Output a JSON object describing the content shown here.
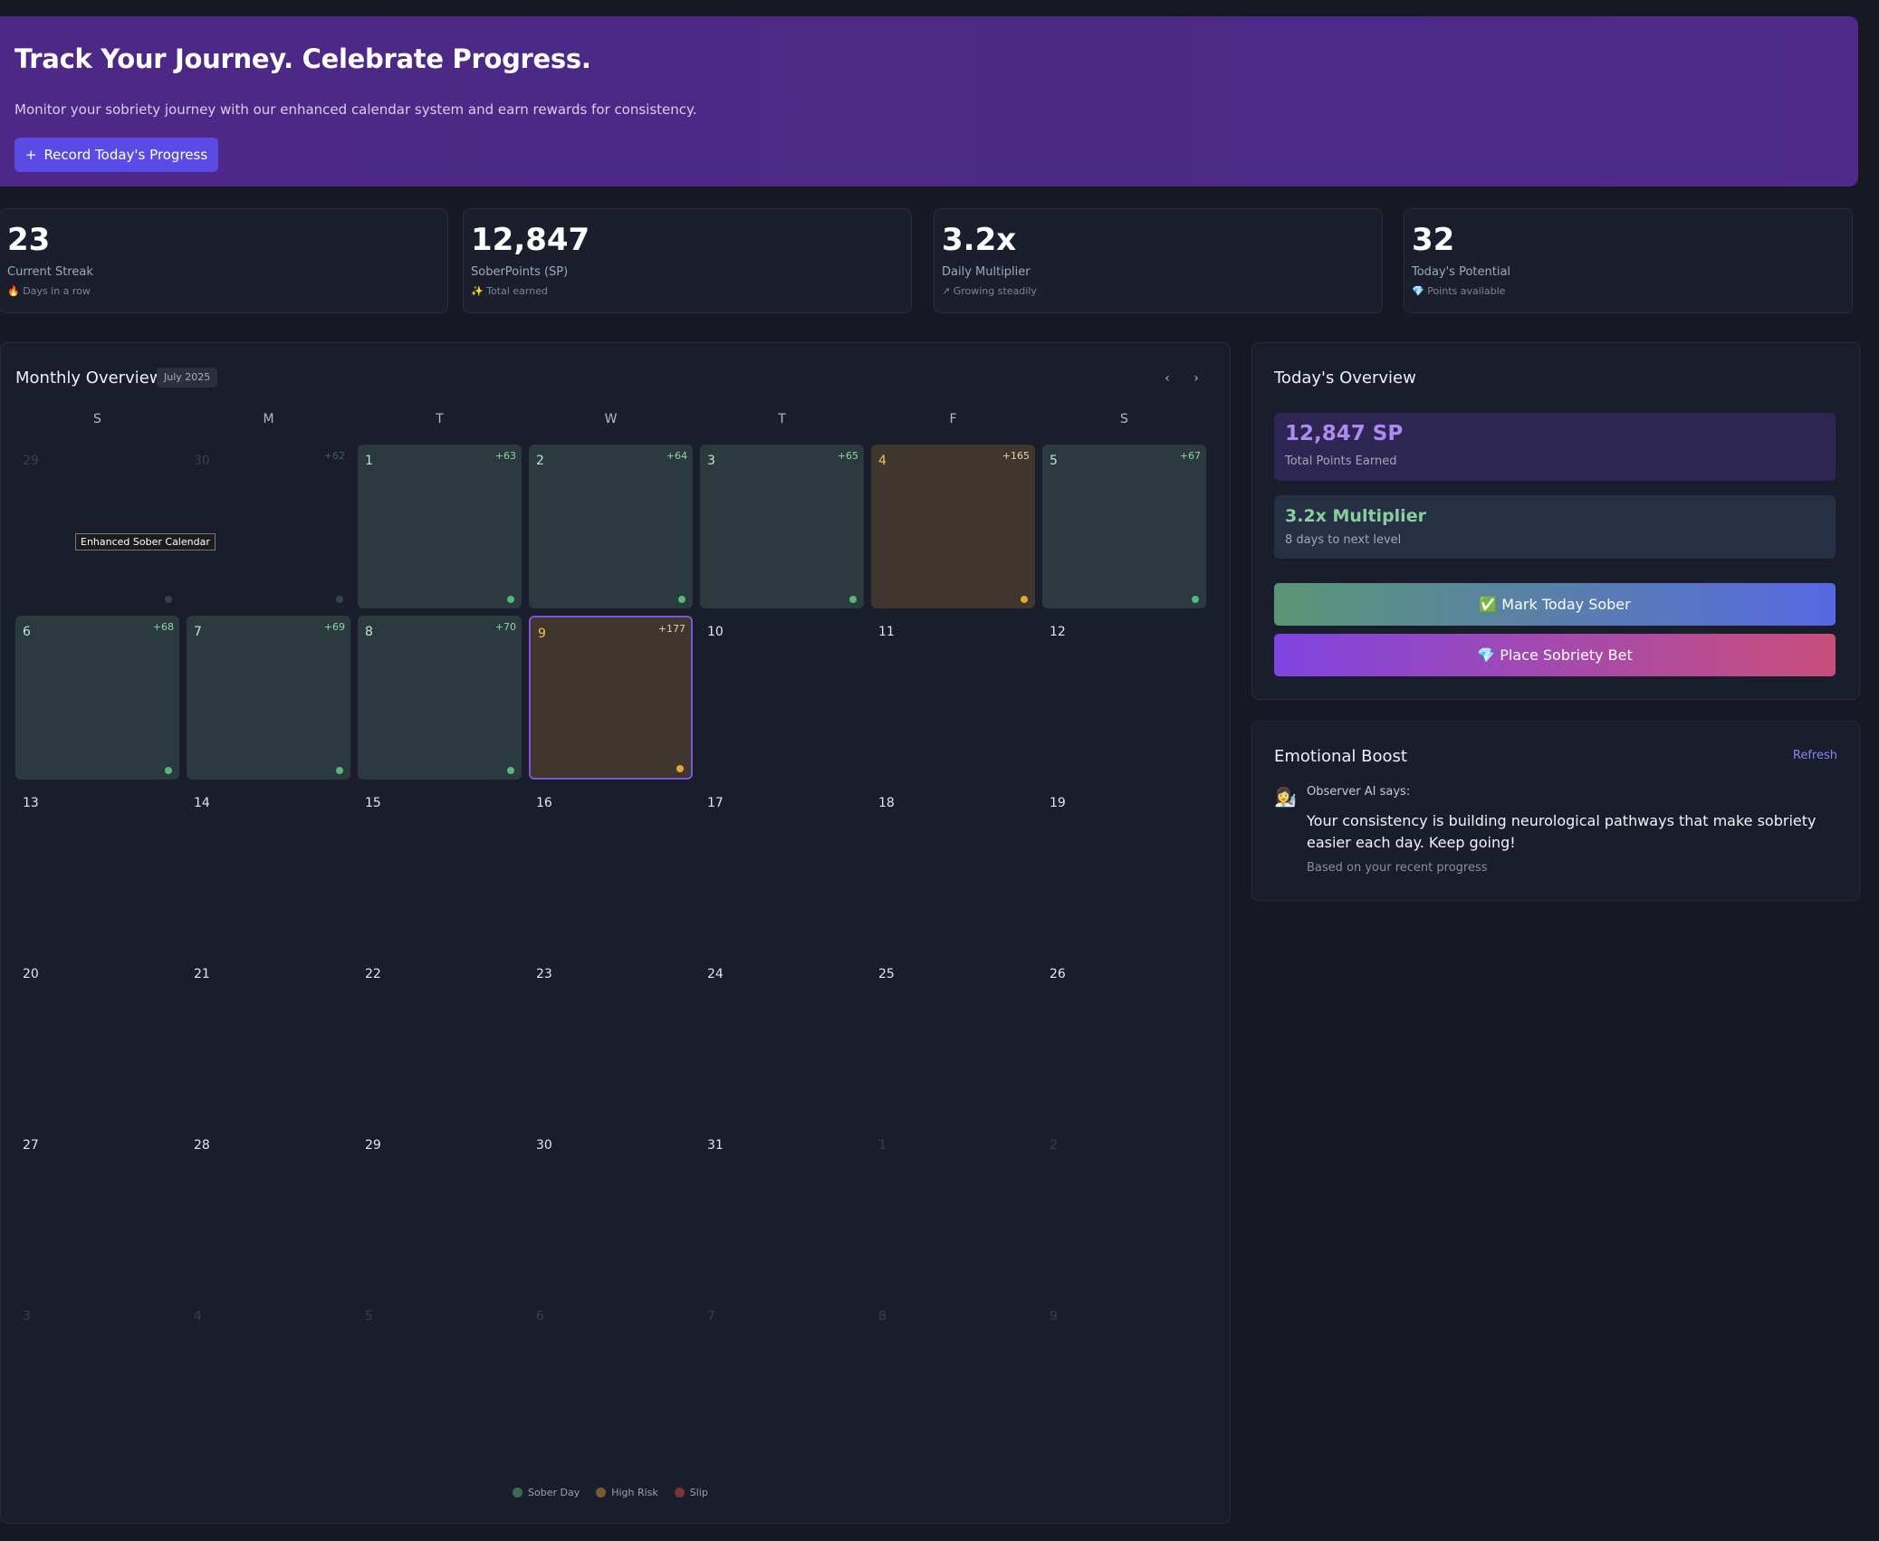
{
  "hero": {
    "title": "Track Your Journey. Celebrate Progress.",
    "subtitle": "Monitor your sobriety journey with our enhanced calendar system and earn rewards for consistency.",
    "button_icon": "+",
    "button_label": "Record Today's Progress"
  },
  "stats": [
    {
      "value": "23",
      "label": "Current Streak",
      "icon": "🔥",
      "sub": "Days in a row"
    },
    {
      "value": "12,847",
      "label": "SoberPoints (SP)",
      "icon": "✨",
      "sub": "Total earned"
    },
    {
      "value": "3.2x",
      "label": "Daily Multiplier",
      "icon": "↗",
      "sub": "Growing steadily"
    },
    {
      "value": "32",
      "label": "Today's Potential",
      "icon": "💎",
      "sub": "Points available"
    }
  ],
  "calendar": {
    "title": "Monthly Overview",
    "month": "July 2025",
    "prev_icon": "‹",
    "next_icon": "›",
    "weekdays": [
      "S",
      "M",
      "T",
      "W",
      "T",
      "F",
      "S"
    ],
    "tooltip": "Enhanced Sober Calendar",
    "days": [
      {
        "d": "29",
        "type": "muted",
        "pts": ""
      },
      {
        "d": "30",
        "type": "muted",
        "pts": "+62",
        "dot": "dim"
      },
      {
        "d": "1",
        "type": "sober",
        "pts": "+63",
        "dot": "g"
      },
      {
        "d": "2",
        "type": "sober",
        "pts": "+64",
        "dot": "g"
      },
      {
        "d": "3",
        "type": "sober",
        "pts": "+65",
        "dot": "g"
      },
      {
        "d": "4",
        "type": "risk",
        "pts": "+165",
        "dot": "o"
      },
      {
        "d": "5",
        "type": "sober",
        "pts": "+67",
        "dot": "g"
      },
      {
        "d": "6",
        "type": "sober",
        "pts": "+68",
        "dot": "g"
      },
      {
        "d": "7",
        "type": "sober",
        "pts": "+69",
        "dot": "g"
      },
      {
        "d": "8",
        "type": "sober",
        "pts": "+70",
        "dot": "g"
      },
      {
        "d": "9",
        "type": "risk today",
        "pts": "+177",
        "dot": "o"
      },
      {
        "d": "10",
        "type": "",
        "pts": ""
      },
      {
        "d": "11",
        "type": "",
        "pts": ""
      },
      {
        "d": "12",
        "type": "",
        "pts": ""
      },
      {
        "d": "13",
        "type": "",
        "pts": ""
      },
      {
        "d": "14",
        "type": "",
        "pts": ""
      },
      {
        "d": "15",
        "type": "",
        "pts": ""
      },
      {
        "d": "16",
        "type": "",
        "pts": ""
      },
      {
        "d": "17",
        "type": "",
        "pts": ""
      },
      {
        "d": "18",
        "type": "",
        "pts": ""
      },
      {
        "d": "19",
        "type": "",
        "pts": ""
      },
      {
        "d": "20",
        "type": "",
        "pts": ""
      },
      {
        "d": "21",
        "type": "",
        "pts": ""
      },
      {
        "d": "22",
        "type": "",
        "pts": ""
      },
      {
        "d": "23",
        "type": "",
        "pts": ""
      },
      {
        "d": "24",
        "type": "",
        "pts": ""
      },
      {
        "d": "25",
        "type": "",
        "pts": ""
      },
      {
        "d": "26",
        "type": "",
        "pts": ""
      },
      {
        "d": "27",
        "type": "",
        "pts": ""
      },
      {
        "d": "28",
        "type": "",
        "pts": ""
      },
      {
        "d": "29",
        "type": "",
        "pts": ""
      },
      {
        "d": "30",
        "type": "",
        "pts": ""
      },
      {
        "d": "31",
        "type": "",
        "pts": ""
      },
      {
        "d": "1",
        "type": "muted",
        "pts": ""
      },
      {
        "d": "2",
        "type": "muted",
        "pts": ""
      },
      {
        "d": "3",
        "type": "muted",
        "pts": ""
      },
      {
        "d": "4",
        "type": "muted",
        "pts": ""
      },
      {
        "d": "5",
        "type": "muted",
        "pts": ""
      },
      {
        "d": "6",
        "type": "muted",
        "pts": ""
      },
      {
        "d": "7",
        "type": "muted",
        "pts": ""
      },
      {
        "d": "8",
        "type": "muted",
        "pts": ""
      },
      {
        "d": "9",
        "type": "muted",
        "pts": ""
      }
    ],
    "legend": [
      {
        "label": "Sober Day",
        "color": "#3e6a55"
      },
      {
        "label": "High Risk",
        "color": "#7a5a32"
      },
      {
        "label": "Slip",
        "color": "#7a3436"
      }
    ]
  },
  "overview": {
    "title": "Today's Overview",
    "points_value": "12,847 SP",
    "points_label": "Total Points Earned",
    "multiplier_value": "3.2x Multiplier",
    "multiplier_label": "8 days to next level",
    "mark_button": "✅ Mark Today Sober",
    "bet_button": "💎 Place Sobriety Bet"
  },
  "boost": {
    "title": "Emotional Boost",
    "refresh": "Refresh",
    "avatar": "👩‍🔬",
    "who": "Observer AI says:",
    "message": "Your consistency is building neurological pathways that make sobriety easier each day. Keep going!",
    "based": "Based on your recent progress"
  }
}
